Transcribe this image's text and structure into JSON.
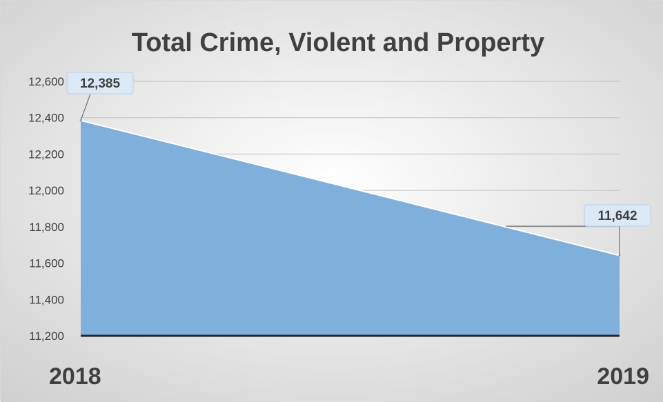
{
  "chart_data": {
    "type": "area",
    "title": "Total Crime, Violent and Property",
    "categories": [
      "2018",
      "2019"
    ],
    "series": [
      {
        "values": [
          12385,
          11642
        ]
      }
    ],
    "data_labels": [
      "12,385",
      "11,642"
    ],
    "y_ticks": [
      "11,200",
      "11,400",
      "11,600",
      "11,800",
      "12,000",
      "12,200",
      "12,400",
      "12,600"
    ],
    "ylim": [
      11200,
      12600
    ],
    "grid": true,
    "legend": "none",
    "colors": {
      "area_fill": "#7fb0dc",
      "area_edge": "#ffffff",
      "baseline": "#262626",
      "gridline": "#bfbfbf",
      "label_box": "#dbe9f6",
      "background_center": "#ffffff",
      "background_edge": "#cfcfcf"
    }
  }
}
